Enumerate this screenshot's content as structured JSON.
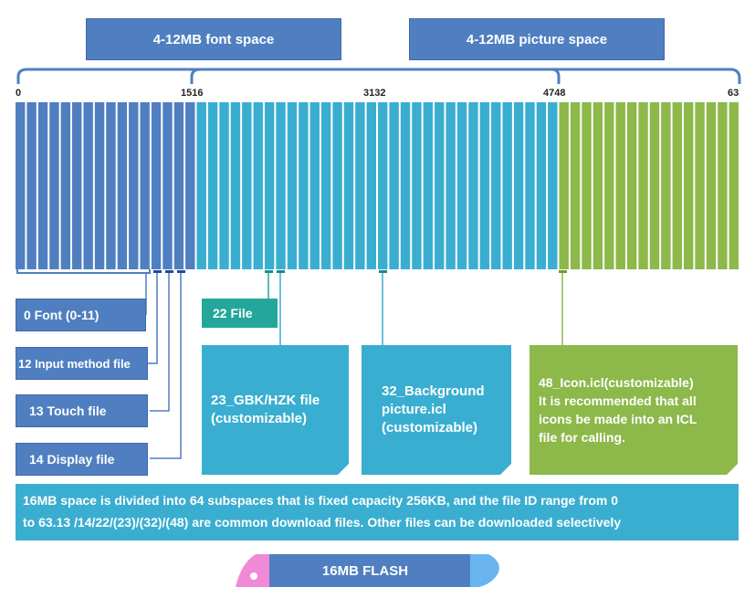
{
  "headers": {
    "font_space": "4-12MB font space",
    "picture_space": "4-12MB picture space"
  },
  "ticks": {
    "t0": "0",
    "t15_16": "1516",
    "t31_32": "3132",
    "t47_48": "4748",
    "t63": "63"
  },
  "strip": {
    "total_subspaces": 64,
    "segments": [
      {
        "from": 0,
        "to": 15,
        "color": "#4f7fc0"
      },
      {
        "from": 16,
        "to": 47,
        "color": "#3aaed0"
      },
      {
        "from": 48,
        "to": 63,
        "color": "#8db84a"
      }
    ],
    "divider_color": "#ffffff"
  },
  "labels": {
    "font": "0 Font (0-11)",
    "input_method": "12 Input method file",
    "touch": "13 Touch file",
    "display": "14 Display file",
    "file22": "22 File"
  },
  "boxes": {
    "gbk_line1": "23_GBK/HZK file",
    "gbk_line2": "(customizable)",
    "bg_line1": "32_Background",
    "bg_line2": "picture.icl",
    "bg_line3": "(customizable)",
    "icon_line1": "48_Icon.icl(customizable)",
    "icon_line2": "It is recommended that all",
    "icon_line3": "icons be made into an ICL",
    "icon_line4": "file for calling."
  },
  "note": {
    "line1": "16MB space is divided into 64 subspaces that is fixed capacity 256KB, and the file ID range from 0",
    "line2": "to 63.13 /14/22/(23)/(32)/(48) are common download files. Other files can be downloaded selectively"
  },
  "flash": {
    "label": "16MB FLASH",
    "body_color": "#4f7fc0",
    "cap_left_color": "#f08ad6",
    "cap_right_color": "#6ab4f0"
  },
  "colors": {
    "blue": "#4f7fc0",
    "teal_label": "#25a69a",
    "cyan": "#3aaed0",
    "green": "#8db84a",
    "bracket": "#4f7fc0"
  }
}
